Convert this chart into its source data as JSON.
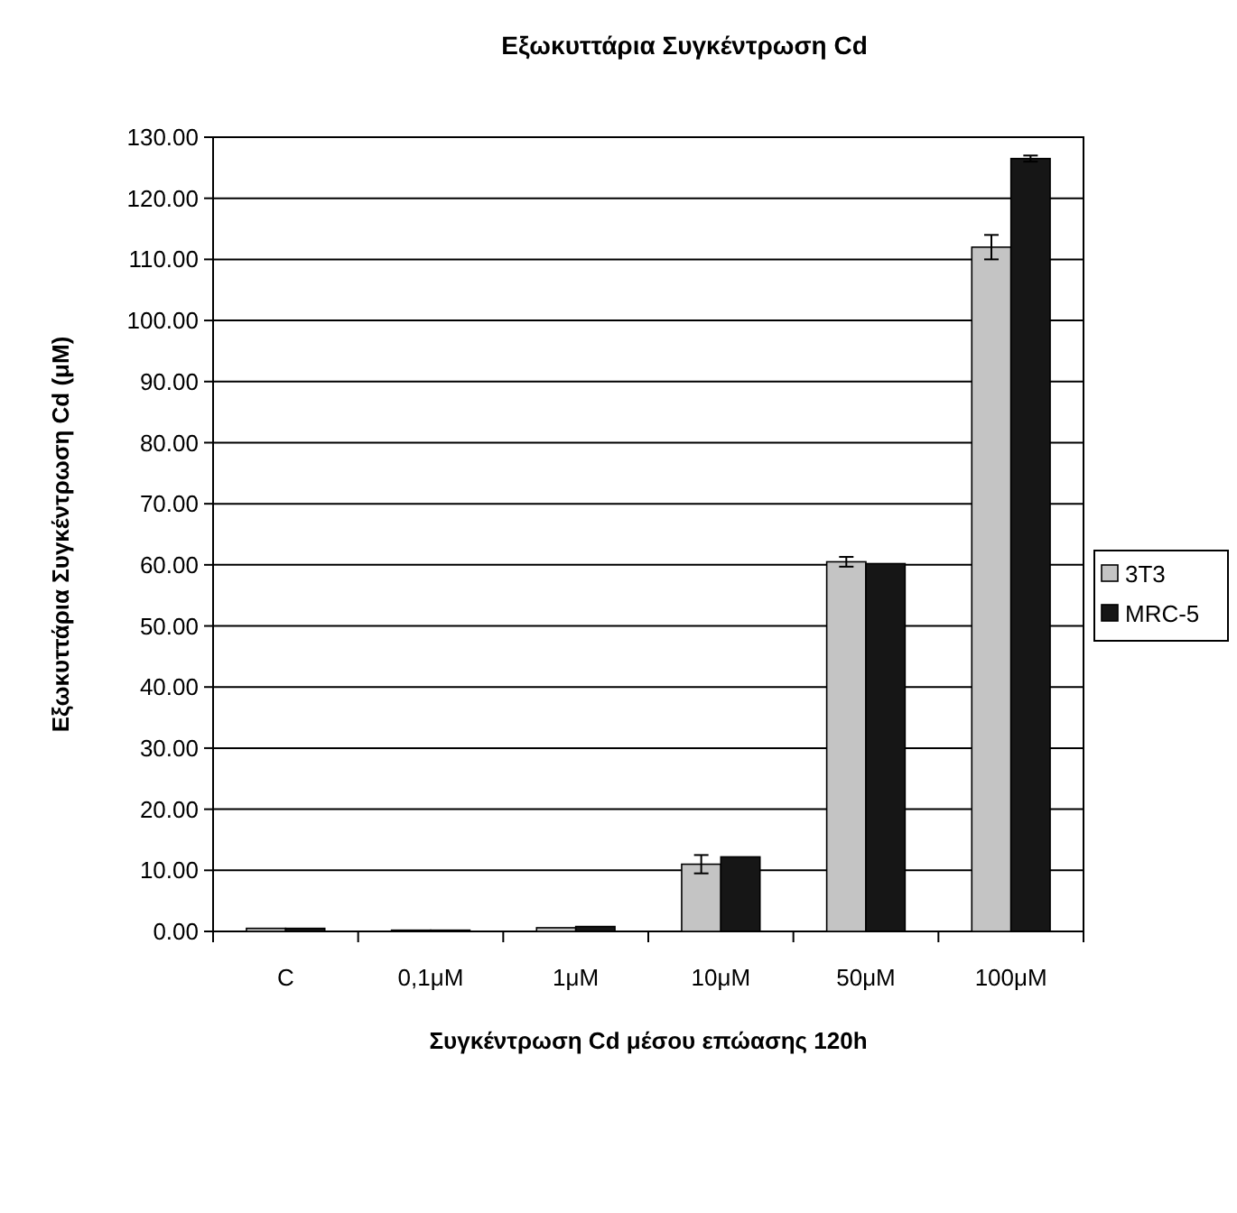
{
  "chart_data": {
    "type": "bar",
    "title": "Εξωκυττάρια Συγκέντρωση Cd",
    "xlabel": "Συγκέντρωση Cd μέσου επώασης 120h",
    "ylabel": "Εξωκυττάρια Συγκέντρωση Cd (μM)",
    "categories": [
      "C",
      "0,1μM",
      "1μM",
      "10μM",
      "50μM",
      "100μM"
    ],
    "series": [
      {
        "name": "3T3",
        "color": "#c4c4c4",
        "values": [
          0.5,
          0.2,
          0.6,
          11,
          60.5,
          112
        ],
        "errors": [
          null,
          null,
          null,
          1.5,
          0.8,
          2
        ]
      },
      {
        "name": "MRC-5",
        "color": "#161616",
        "values": [
          0.5,
          0.2,
          0.8,
          12.2,
          60.2,
          126.5
        ],
        "errors": [
          null,
          null,
          null,
          null,
          null,
          0.5
        ]
      }
    ],
    "ylim": [
      0,
      130
    ],
    "yticks": [
      {
        "value": 0,
        "label": "0.00"
      },
      {
        "value": 10,
        "label": "10.00"
      },
      {
        "value": 20,
        "label": "20.00"
      },
      {
        "value": 30,
        "label": "30.00"
      },
      {
        "value": 40,
        "label": "40.00"
      },
      {
        "value": 50,
        "label": "50.00"
      },
      {
        "value": 60,
        "label": "60.00"
      },
      {
        "value": 70,
        "label": "70.00"
      },
      {
        "value": 80,
        "label": "80.00"
      },
      {
        "value": 90,
        "label": "90.00"
      },
      {
        "value": 100,
        "label": "100.00"
      },
      {
        "value": 110,
        "label": "110.00"
      },
      {
        "value": 120,
        "label": "120.00"
      },
      {
        "value": 130,
        "label": "130.00"
      }
    ],
    "grid": "y",
    "legend": "right"
  }
}
